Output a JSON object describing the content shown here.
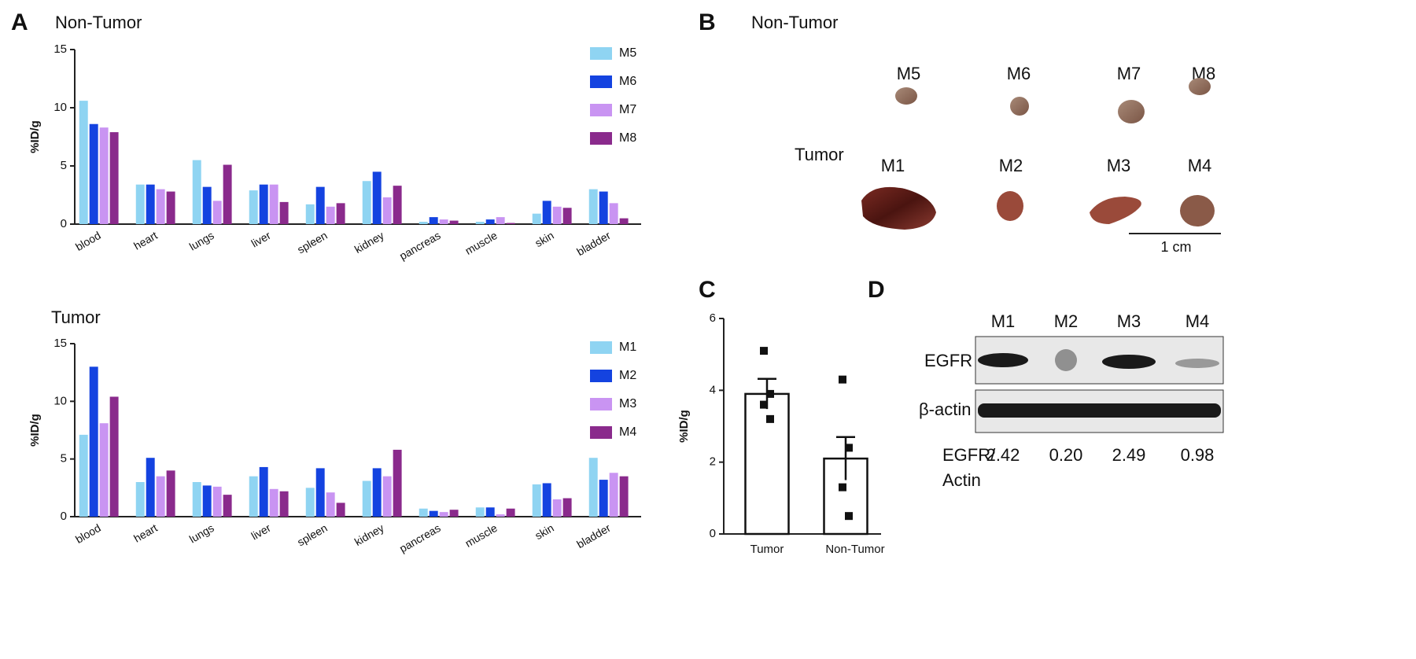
{
  "chart_data": [
    {
      "type": "bar",
      "panel": "A",
      "title": "Non-Tumor",
      "ylabel": "%ID/g",
      "categories": [
        "blood",
        "heart",
        "lungs",
        "liver",
        "spleen",
        "kidney",
        "pancreas",
        "muscle",
        "skin",
        "bladder"
      ],
      "series": [
        {
          "name": "M5",
          "color": "#8fd4f2",
          "values": [
            10.6,
            3.4,
            5.5,
            2.9,
            1.7,
            3.7,
            0.2,
            0.2,
            0.9,
            3.0
          ]
        },
        {
          "name": "M6",
          "color": "#1443e0",
          "values": [
            8.6,
            3.4,
            3.2,
            3.4,
            3.2,
            4.5,
            0.6,
            0.4,
            2.0,
            2.8
          ]
        },
        {
          "name": "M7",
          "color": "#c994f2",
          "values": [
            8.3,
            3.0,
            2.0,
            3.4,
            1.5,
            2.3,
            0.4,
            0.6,
            1.5,
            1.8
          ]
        },
        {
          "name": "M8",
          "color": "#8a2a8c",
          "values": [
            7.9,
            2.8,
            5.1,
            1.9,
            1.8,
            3.3,
            0.3,
            0.1,
            1.4,
            0.5
          ]
        }
      ],
      "ylim": [
        0,
        15
      ],
      "yticks": [
        0,
        5,
        10,
        15
      ],
      "legend": "upper right"
    },
    {
      "type": "bar",
      "title": "Tumor",
      "ylabel": "%ID/g",
      "categories": [
        "blood",
        "heart",
        "lungs",
        "liver",
        "spleen",
        "kidney",
        "pancreas",
        "muscle",
        "skin",
        "bladder"
      ],
      "series": [
        {
          "name": "M1",
          "color": "#8fd4f2",
          "values": [
            7.1,
            3.0,
            3.0,
            3.5,
            2.5,
            3.1,
            0.7,
            0.8,
            2.8,
            5.1
          ]
        },
        {
          "name": "M2",
          "color": "#1443e0",
          "values": [
            13.0,
            5.1,
            2.7,
            4.3,
            4.2,
            4.2,
            0.5,
            0.8,
            2.9,
            3.2
          ]
        },
        {
          "name": "M3",
          "color": "#c994f2",
          "values": [
            8.1,
            3.5,
            2.6,
            2.4,
            2.1,
            3.5,
            0.4,
            0.2,
            1.5,
            3.8
          ]
        },
        {
          "name": "M4",
          "color": "#8a2a8c",
          "values": [
            10.4,
            4.0,
            1.9,
            2.2,
            1.2,
            5.8,
            0.6,
            0.7,
            1.6,
            3.5
          ]
        }
      ],
      "ylim": [
        0,
        15
      ],
      "yticks": [
        0,
        5,
        10,
        15
      ],
      "legend": "upper right"
    },
    {
      "type": "bar",
      "panel": "C",
      "ylabel": "%ID/g",
      "categories": [
        "Tumor",
        "Non-Tumor"
      ],
      "values": [
        3.9,
        2.1
      ],
      "errors": [
        0.42,
        0.6
      ],
      "points": [
        [
          5.1,
          3.9,
          3.6,
          3.2
        ],
        [
          4.3,
          2.4,
          1.3,
          0.5
        ]
      ],
      "color": "#ffffff",
      "ylim": [
        0,
        6
      ],
      "yticks": [
        0,
        2,
        4,
        6
      ]
    }
  ],
  "panel_b": {
    "label": "B",
    "groups": [
      {
        "name": "Non-Tumor",
        "samples": [
          "M5",
          "M6",
          "M7",
          "M8"
        ]
      },
      {
        "name": "Tumor",
        "samples": [
          "M1",
          "M2",
          "M3",
          "M4"
        ]
      }
    ],
    "scale": "1 cm"
  },
  "panel_d": {
    "label": "D",
    "lanes": [
      "M1",
      "M2",
      "M3",
      "M4"
    ],
    "rows": [
      "EGFR",
      "β-actin"
    ],
    "ratio_label": [
      "EGFR/",
      "Actin"
    ],
    "ratios": [
      "2.42",
      "0.20",
      "2.49",
      "0.98"
    ]
  }
}
